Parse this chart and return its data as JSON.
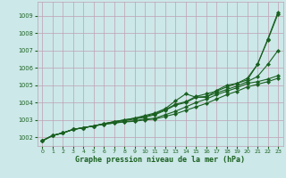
{
  "title": "Graphe pression niveau de la mer (hPa)",
  "bg_color": "#cce8e8",
  "grid_color": "#c0a0b4",
  "line_color": "#1a6020",
  "marker": "D",
  "markersize": 2.2,
  "linewidth": 0.8,
  "xlim": [
    -0.5,
    23.5
  ],
  "ylim": [
    1001.5,
    1009.8
  ],
  "yticks": [
    1002,
    1003,
    1004,
    1005,
    1006,
    1007,
    1008,
    1009
  ],
  "xticks": [
    0,
    1,
    2,
    3,
    4,
    5,
    6,
    7,
    8,
    9,
    10,
    11,
    12,
    13,
    14,
    15,
    16,
    17,
    18,
    19,
    20,
    21,
    22,
    23
  ],
  "series": [
    [
      1001.8,
      1002.1,
      1002.25,
      1002.45,
      1002.55,
      1002.65,
      1002.75,
      1002.82,
      1002.88,
      1002.92,
      1003.0,
      1003.05,
      1003.2,
      1003.35,
      1003.55,
      1003.75,
      1003.95,
      1004.2,
      1004.45,
      1004.65,
      1004.9,
      1005.05,
      1005.2,
      1005.4
    ],
    [
      1001.8,
      1002.1,
      1002.25,
      1002.45,
      1002.55,
      1002.65,
      1002.75,
      1002.82,
      1002.9,
      1002.95,
      1003.05,
      1003.1,
      1003.3,
      1003.5,
      1003.75,
      1004.0,
      1004.2,
      1004.45,
      1004.65,
      1004.85,
      1005.1,
      1005.2,
      1005.35,
      1005.55
    ],
    [
      1001.8,
      1002.1,
      1002.25,
      1002.45,
      1002.55,
      1002.65,
      1002.78,
      1002.88,
      1002.95,
      1003.05,
      1003.15,
      1003.3,
      1003.55,
      1003.85,
      1004.0,
      1004.3,
      1004.35,
      1004.55,
      1004.75,
      1004.95,
      1005.2,
      1005.5,
      1006.2,
      1007.0
    ],
    [
      1001.8,
      1002.1,
      1002.25,
      1002.45,
      1002.55,
      1002.65,
      1002.78,
      1002.9,
      1003.0,
      1003.1,
      1003.2,
      1003.35,
      1003.6,
      1003.9,
      1004.05,
      1004.35,
      1004.5,
      1004.65,
      1004.9,
      1005.1,
      1005.3,
      1006.2,
      1007.6,
      1009.1
    ],
    [
      1001.8,
      1002.1,
      1002.25,
      1002.45,
      1002.55,
      1002.65,
      1002.78,
      1002.9,
      1003.0,
      1003.1,
      1003.25,
      1003.4,
      1003.65,
      1004.1,
      1004.5,
      1004.3,
      1004.3,
      1004.7,
      1005.0,
      1005.1,
      1005.4,
      1006.2,
      1007.65,
      1009.2
    ]
  ]
}
